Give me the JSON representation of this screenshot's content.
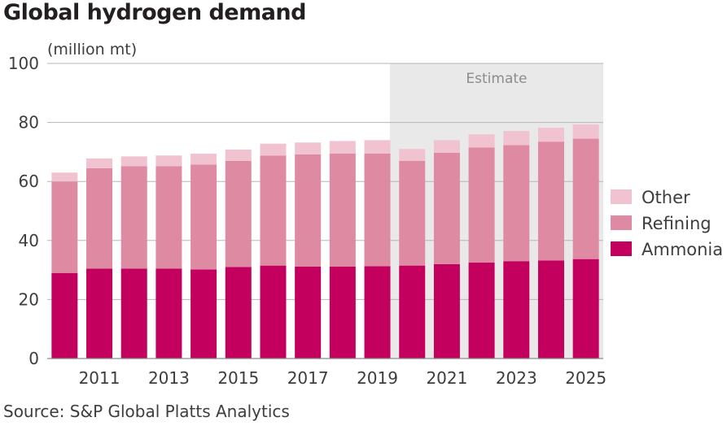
{
  "chart_data": {
    "type": "bar",
    "stacked": true,
    "title": "Global hydrogen demand",
    "units": "(million mt)",
    "source": "Source: S&P Global Platts Analytics",
    "estimate_label": "Estimate",
    "estimate_from": 2020,
    "x": [
      2010,
      2011,
      2012,
      2013,
      2014,
      2015,
      2016,
      2017,
      2018,
      2019,
      2020,
      2021,
      2022,
      2023,
      2024,
      2025
    ],
    "x_tick_labels": [
      "2011",
      "2013",
      "2015",
      "2017",
      "2019",
      "2021",
      "2023",
      "2025"
    ],
    "x_tick_years": [
      2011,
      2013,
      2015,
      2017,
      2019,
      2021,
      2023,
      2025
    ],
    "ylim": [
      0,
      100
    ],
    "y_ticks": [
      0,
      20,
      40,
      60,
      80,
      100
    ],
    "y_tick_labels": [
      "0",
      "20",
      "40",
      "60",
      "80",
      "100"
    ],
    "grid": true,
    "legend_position": "right",
    "series": [
      {
        "name": "Ammonia",
        "color": "#c4005f",
        "values": [
          29,
          30.5,
          30.5,
          30.5,
          30.2,
          31,
          31.5,
          31.2,
          31.2,
          31.3,
          31.5,
          32,
          32.5,
          33,
          33.2,
          33.7
        ]
      },
      {
        "name": "Refining",
        "color": "#de8aa3",
        "values": [
          31,
          34,
          34.7,
          34.7,
          35.5,
          36,
          37.3,
          38,
          38.3,
          38.2,
          35.5,
          37.7,
          39,
          39.3,
          40.3,
          40.8
        ]
      },
      {
        "name": "Other",
        "color": "#f1c3d0",
        "values": [
          3,
          3.3,
          3.3,
          3.6,
          3.7,
          3.8,
          4,
          4,
          4.2,
          4.5,
          4,
          4.3,
          4.5,
          4.8,
          4.7,
          4.8
        ]
      }
    ],
    "legend_order": [
      "Other",
      "Refining",
      "Ammonia"
    ]
  }
}
